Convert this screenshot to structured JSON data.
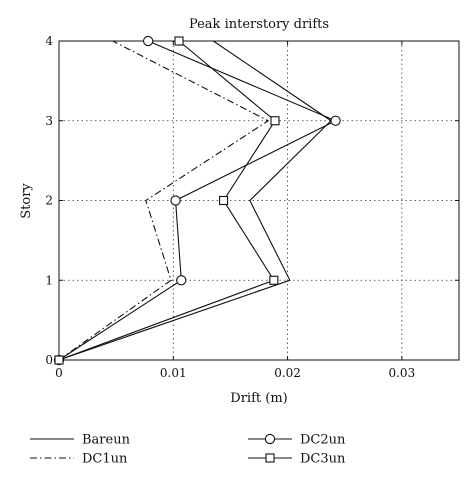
{
  "chart_data": {
    "type": "line",
    "title": "Peak interstory drifts",
    "xlabel": "Drift (m)",
    "ylabel": "Story",
    "xlim": [
      0,
      0.035
    ],
    "ylim": [
      0,
      4
    ],
    "x_ticks": [
      0,
      0.01,
      0.02,
      0.03
    ],
    "x_tick_labels": [
      "0",
      "0.01",
      "0.02",
      "0.03"
    ],
    "y_ticks": [
      0,
      1,
      2,
      3,
      4
    ],
    "y_tick_labels": [
      "0",
      "1",
      "2",
      "3",
      "4"
    ],
    "grid": true,
    "legend_position": "bottom",
    "series": [
      {
        "name": "Bareun",
        "line_style": "solid",
        "marker": "none",
        "y": [
          0,
          1,
          2,
          3,
          4
        ],
        "x": [
          0,
          0.0202,
          0.0167,
          0.0238,
          0.0135
        ]
      },
      {
        "name": "DC1un",
        "line_style": "dashdot",
        "marker": "none",
        "y": [
          0,
          1,
          2,
          3,
          4
        ],
        "x": [
          0,
          0.0098,
          0.0076,
          0.0183,
          0.0047
        ]
      },
      {
        "name": "DC2un",
        "line_style": "solid",
        "marker": "circle",
        "y": [
          0,
          1,
          2,
          3,
          4
        ],
        "x": [
          0,
          0.0107,
          0.0102,
          0.0242,
          0.0078
        ]
      },
      {
        "name": "DC3un",
        "line_style": "solid",
        "marker": "square",
        "y": [
          0,
          1,
          2,
          3,
          4
        ],
        "x": [
          0,
          0.0188,
          0.0144,
          0.0189,
          0.0105
        ]
      }
    ]
  }
}
